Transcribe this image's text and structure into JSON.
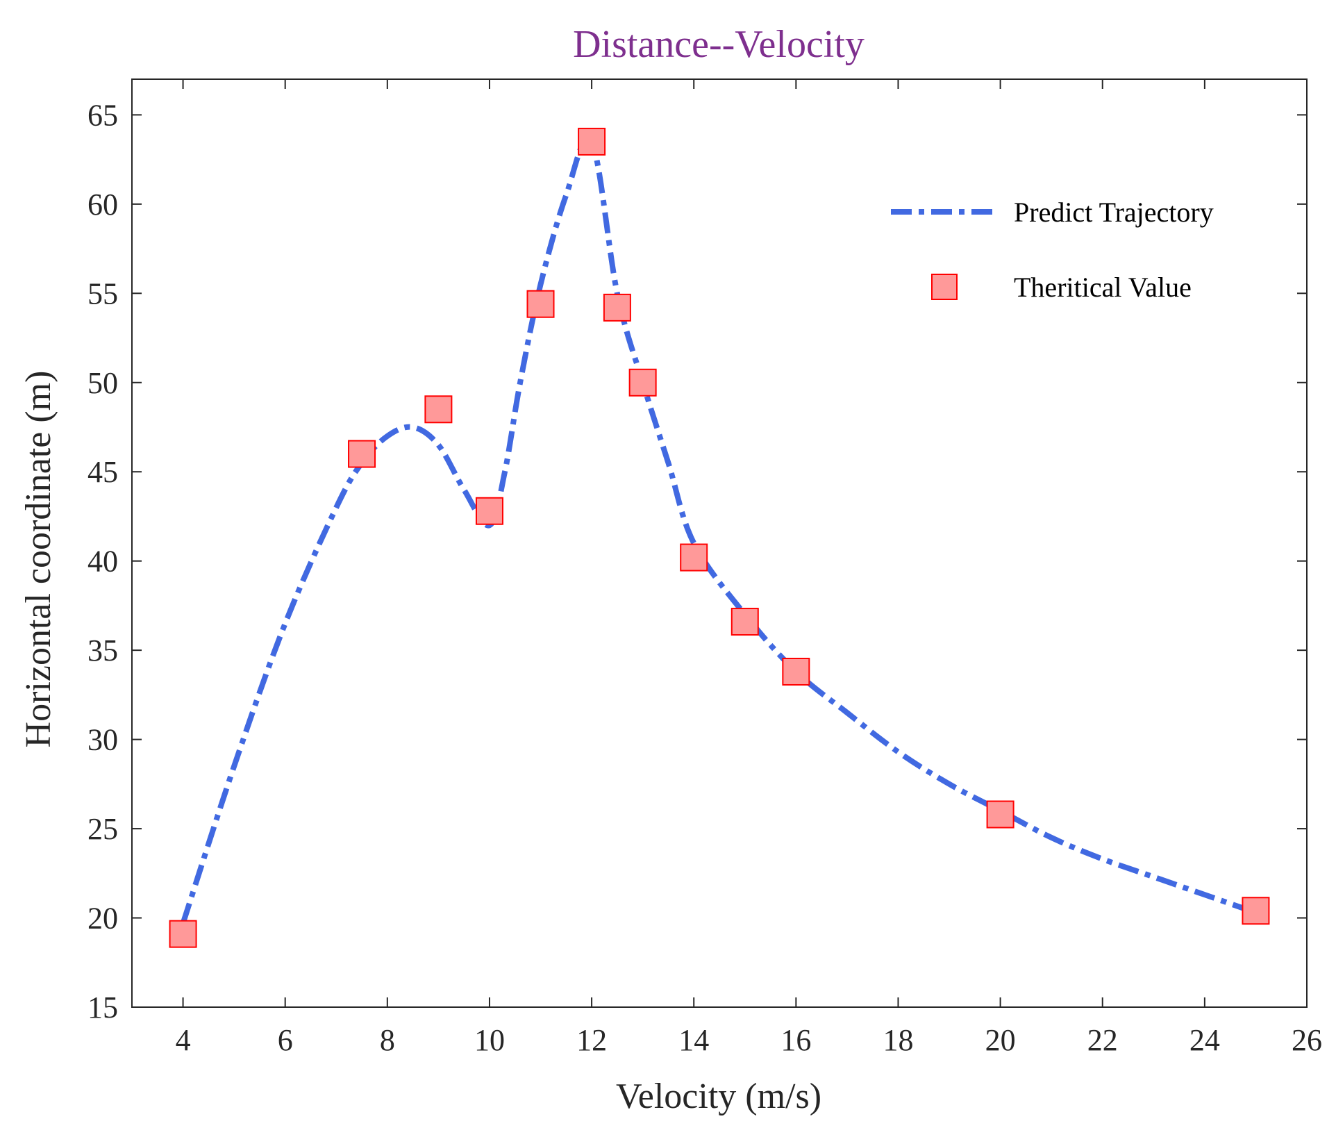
{
  "chart_data": {
    "type": "line",
    "title": "Distance--Velocity",
    "xlabel": "Velocity (m/s)",
    "ylabel": "Horizontal coordinate (m)",
    "xlim": [
      3,
      26
    ],
    "ylim": [
      15,
      67
    ],
    "xticks": [
      4,
      6,
      8,
      10,
      12,
      14,
      16,
      18,
      20,
      22,
      24,
      26
    ],
    "yticks": [
      15,
      20,
      25,
      30,
      35,
      40,
      45,
      50,
      55,
      60,
      65
    ],
    "legend_position": "top-right",
    "series": [
      {
        "name": "Predict Trajectory",
        "style": "dash-dot line",
        "color": "#4169E1",
        "x": [
          4,
          5,
          6,
          7,
          7.5,
          8,
          8.5,
          9,
          9.5,
          10,
          10.3,
          10.6,
          11,
          11.5,
          12,
          12.5,
          13,
          13.5,
          14,
          15,
          16,
          17,
          18,
          19,
          20,
          21,
          22,
          23,
          24,
          25
        ],
        "y": [
          19.7,
          28.5,
          36.5,
          43.0,
          45.5,
          47.0,
          47.5,
          46.5,
          44.0,
          42.0,
          45.0,
          50.0,
          55.5,
          60.5,
          63.5,
          55.0,
          50.0,
          45.5,
          41.0,
          37.0,
          33.8,
          31.5,
          29.3,
          27.5,
          26.0,
          24.5,
          23.3,
          22.3,
          21.3,
          20.3
        ]
      },
      {
        "name": "Theritical Value",
        "style": "square markers",
        "color": "#FF9999",
        "edge_color": "#FF0000",
        "x": [
          4,
          7.5,
          9,
          10,
          11,
          12,
          12.5,
          13,
          14,
          15,
          16,
          20,
          25
        ],
        "y": [
          19.1,
          46.0,
          48.5,
          42.8,
          54.4,
          63.5,
          54.2,
          50.0,
          40.2,
          36.6,
          33.8,
          25.8,
          20.4
        ]
      }
    ]
  },
  "colors": {
    "title": "#7E2F8E",
    "axis": "#262626"
  }
}
